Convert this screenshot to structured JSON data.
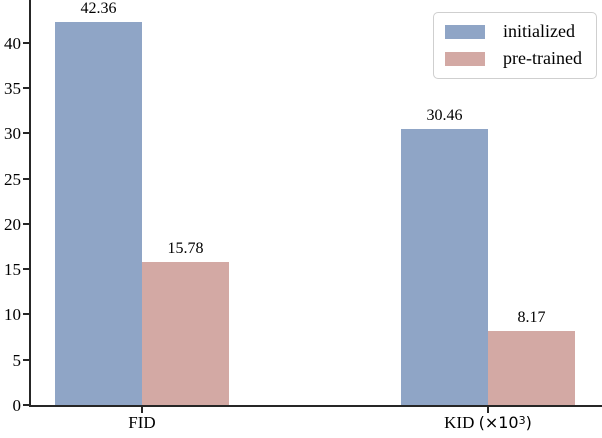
{
  "figure": {
    "background": "#ffffff",
    "spine_color": "#262626",
    "text_color": "#000000"
  },
  "chart_data": {
    "type": "bar",
    "categories": [
      "FID",
      "KID (×10³)"
    ],
    "series": [
      {
        "name": "initialized",
        "color": "#8fa5c6",
        "values": [
          42.36,
          30.46
        ],
        "value_labels": [
          "42.36",
          "30.46"
        ]
      },
      {
        "name": "pre-trained",
        "color": "#d3a9a4",
        "values": [
          15.78,
          8.17
        ],
        "value_labels": [
          "15.78",
          "8.17"
        ]
      }
    ],
    "xlabel": "",
    "ylabel": "",
    "title": "",
    "ylim": [
      0,
      44.75
    ],
    "yticks": [
      0,
      5,
      10,
      15,
      20,
      25,
      30,
      35,
      40
    ],
    "grid": false,
    "legend": {
      "position": "upper right",
      "entries": [
        "initialized",
        "pre-trained"
      ]
    }
  }
}
